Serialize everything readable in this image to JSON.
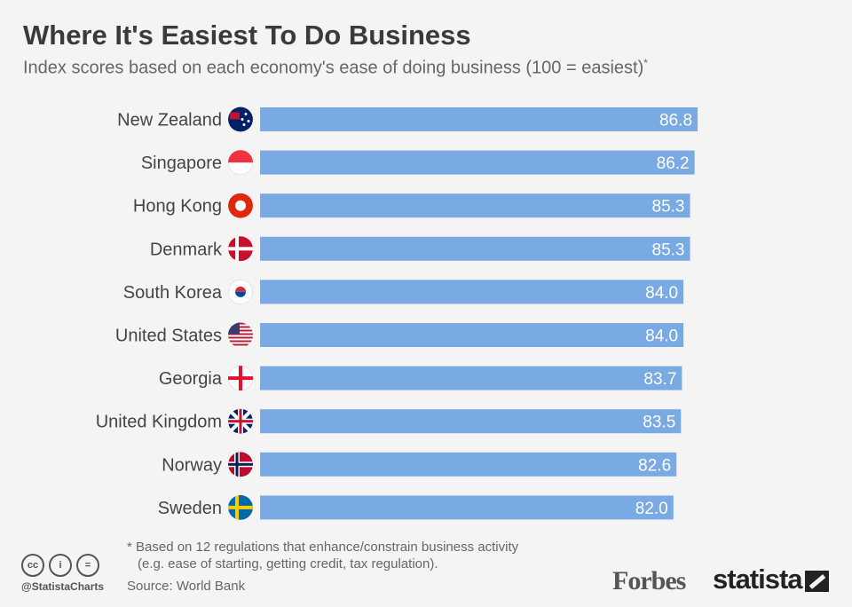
{
  "chart_data": {
    "type": "bar",
    "orientation": "horizontal",
    "title": "Where It's Easiest To Do Business",
    "subtitle": "Index scores based on each economy's ease of doing business (100 = easiest)",
    "subtitle_mark": "*",
    "categories": [
      "New Zealand",
      "Singapore",
      "Hong Kong",
      "Denmark",
      "South Korea",
      "United States",
      "Georgia",
      "United Kingdom",
      "Norway",
      "Sweden"
    ],
    "values": [
      86.8,
      86.2,
      85.3,
      85.3,
      84.0,
      84.0,
      83.7,
      83.5,
      82.6,
      82.0
    ],
    "value_labels": [
      "86.8",
      "86.2",
      "85.3",
      "85.3",
      "84.0",
      "84.0",
      "83.7",
      "83.5",
      "82.6",
      "82.0"
    ],
    "xlim": [
      0,
      100
    ],
    "grid": false,
    "bar_color": "#7aaae3",
    "data_label_color": "#ffffff"
  },
  "footer": {
    "note_line1": "* Based on 12 regulations that enhance/constrain business activity",
    "note_line2": "(e.g. ease of starting, getting credit, tax regulation).",
    "source": "Source: World Bank",
    "handle": "@StatistaCharts",
    "cc_icons": [
      "cc",
      "i",
      "="
    ],
    "forbes_logo": "Forbes",
    "statista_logo": "statista"
  }
}
